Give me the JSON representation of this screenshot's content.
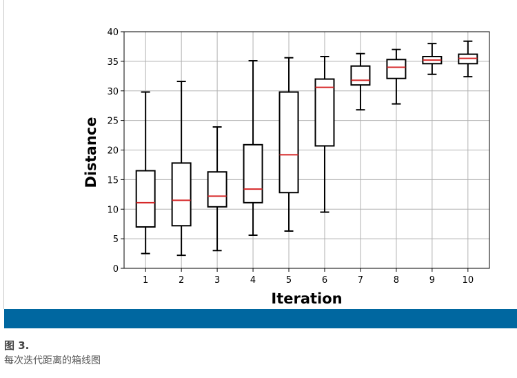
{
  "chart_data": {
    "type": "boxplot",
    "title": "",
    "xlabel": "Iteration",
    "ylabel": "Distance",
    "ylim": [
      0,
      40
    ],
    "yticks": [
      "0",
      "5",
      "10",
      "15",
      "20",
      "25",
      "30",
      "35",
      "40"
    ],
    "grid": true,
    "categories": [
      "1",
      "2",
      "3",
      "4",
      "5",
      "6",
      "7",
      "8",
      "9",
      "10"
    ],
    "boxes": [
      {
        "whislo": 2.5,
        "q1": 7.0,
        "med": 11.1,
        "q3": 16.5,
        "whishi": 29.8
      },
      {
        "whislo": 2.2,
        "q1": 7.2,
        "med": 11.5,
        "q3": 17.8,
        "whishi": 31.6
      },
      {
        "whislo": 3.0,
        "q1": 10.4,
        "med": 12.2,
        "q3": 16.3,
        "whishi": 23.9
      },
      {
        "whislo": 5.6,
        "q1": 11.1,
        "med": 13.4,
        "q3": 20.9,
        "whishi": 35.1
      },
      {
        "whislo": 6.3,
        "q1": 12.8,
        "med": 19.2,
        "q3": 29.8,
        "whishi": 35.6
      },
      {
        "whislo": 9.5,
        "q1": 20.7,
        "med": 30.6,
        "q3": 32.0,
        "whishi": 35.8
      },
      {
        "whislo": 26.8,
        "q1": 31.0,
        "med": 31.8,
        "q3": 34.2,
        "whishi": 36.3
      },
      {
        "whislo": 27.8,
        "q1": 32.1,
        "med": 34.0,
        "q3": 35.3,
        "whishi": 37.0
      },
      {
        "whislo": 32.8,
        "q1": 34.6,
        "med": 35.2,
        "q3": 35.8,
        "whishi": 38.0
      },
      {
        "whislo": 32.4,
        "q1": 34.6,
        "med": 35.5,
        "q3": 36.2,
        "whishi": 38.4
      }
    ],
    "colors": {
      "box": "#000000",
      "median": "#d62728",
      "grid": "#b0b0b0"
    }
  },
  "figure": {
    "label": "图 3.",
    "caption": "每次迭代距离的箱线图"
  },
  "colors": {
    "band": "#0067a0"
  }
}
